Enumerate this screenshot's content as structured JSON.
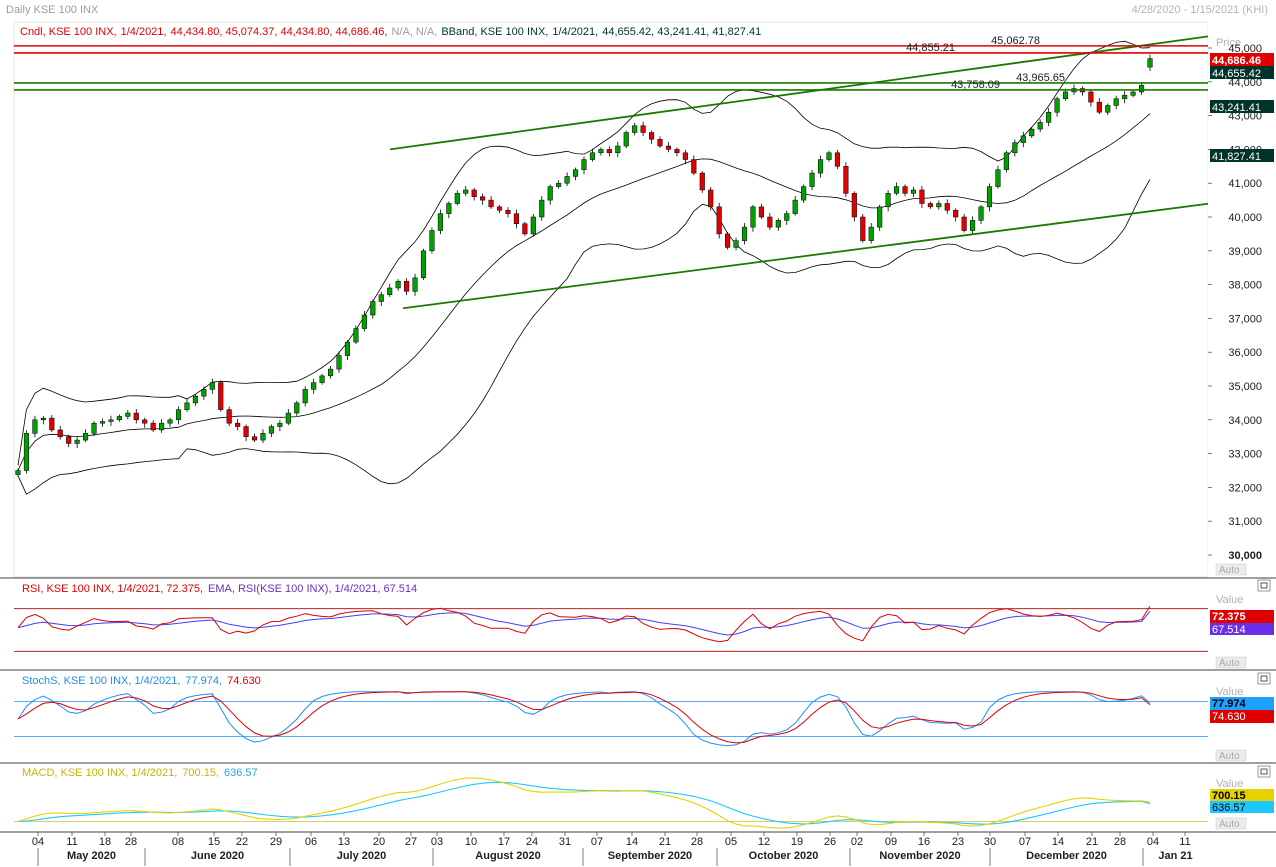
{
  "window": {
    "title": "Daily KSE 100 INX",
    "date_range": "4/28/2020 - 1/15/2021 (KHI)"
  },
  "main": {
    "legend_cndl": {
      "name": "Cndl, KSE 100 INX,",
      "date": "1/4/2021,",
      "o": "44,434.80,",
      "h": "45,074.37,",
      "l": "44,434.80,",
      "c": "44,686.46,",
      "na": "N/A, N/A,"
    },
    "legend_bband": {
      "name": "BBand, KSE 100 INX,",
      "date": "1/4/2021,",
      "values": "44,655.42,  43,241.41,  41,827.41"
    },
    "axis_title": "Price",
    "y_ticks": [
      {
        "v": 45000,
        "label": "45,000"
      },
      {
        "v": 44000,
        "label": "44,000"
      },
      {
        "v": 43000,
        "label": "43,000"
      },
      {
        "v": 42000,
        "label": "42,000"
      },
      {
        "v": 41000,
        "label": "41,000"
      },
      {
        "v": 40000,
        "label": "40,000"
      },
      {
        "v": 39000,
        "label": "39,000"
      },
      {
        "v": 38000,
        "label": "38,000"
      },
      {
        "v": 37000,
        "label": "37,000"
      },
      {
        "v": 36000,
        "label": "36,000"
      },
      {
        "v": 35000,
        "label": "35,000"
      },
      {
        "v": 34000,
        "label": "34,000"
      },
      {
        "v": 33000,
        "label": "33,000"
      },
      {
        "v": 32000,
        "label": "32,000"
      },
      {
        "v": 31000,
        "label": "31,000"
      },
      {
        "v": 30000,
        "label": "30,000"
      }
    ],
    "level_labels": [
      {
        "v": 45062.78,
        "label": "45,062.78",
        "color": "#e00000"
      },
      {
        "v": 44855.21,
        "label": "44,855.21",
        "color": "#e00000"
      },
      {
        "v": 43965.65,
        "label": "43,965.65",
        "color": "#1a7a00"
      },
      {
        "v": 43758.09,
        "label": "43,758.09",
        "color": "#1a7a00"
      }
    ],
    "last_markers": [
      {
        "v": 44686.46,
        "label": "44,686.46",
        "bg": "#e00000",
        "fg": "#ffffff"
      },
      {
        "v": 44655.42,
        "label": "44,655.42",
        "bg": "#00332a",
        "fg": "#ffffff"
      },
      {
        "v": 43241.41,
        "label": "43,241.41",
        "bg": "#00332a",
        "fg": "#ffffff"
      },
      {
        "v": 41827.41,
        "label": "41,827.41",
        "bg": "#00332a",
        "fg": "#ffffff"
      }
    ],
    "auto_label": "Auto"
  },
  "rsi_panel": {
    "legend_a": "RSI, KSE 100 INX,  1/4/2021,  72.375,",
    "legend_b": "EMA, RSI(KSE 100 INX),  1/4/2021,  67.514",
    "value_title": "Value",
    "marker_a": "72.375",
    "marker_b": "67.514",
    "auto_label": "Auto"
  },
  "stoch_panel": {
    "legend_a": "StochS, KSE 100 INX,  1/4/2021,",
    "legend_b": "77.974,",
    "legend_c": "74.630",
    "value_title": "Value",
    "marker_a": "77.974",
    "marker_b": "74.630",
    "auto_label": "Auto"
  },
  "macd_panel": {
    "legend_a": "MACD, KSE 100 INX,  1/4/2021,",
    "legend_b": "700.15,",
    "legend_c": "636.57",
    "value_title": "Value",
    "marker_a": "700.15",
    "marker_b": "636.57",
    "auto_label": "Auto"
  },
  "time_axis": {
    "days": [
      "04",
      "11",
      "18",
      "28",
      "08",
      "15",
      "22",
      "29",
      "06",
      "13",
      "20",
      "27",
      "03",
      "10",
      "17",
      "24",
      "31",
      "07",
      "14",
      "21",
      "28",
      "05",
      "12",
      "19",
      "26",
      "02",
      "09",
      "16",
      "23",
      "30",
      "07",
      "14",
      "21",
      "28",
      "04",
      "11"
    ],
    "months": [
      "May 2020",
      "June 2020",
      "July 2020",
      "August 2020",
      "September 2020",
      "October 2020",
      "November 2020",
      "December 2020",
      "Jan 21"
    ]
  },
  "colors": {
    "up": "#00a000",
    "down": "#e00000",
    "bband": "#000000",
    "trend": "#1a7a00",
    "levels": "#e00000",
    "rsi": "#e00000",
    "ema": "#4040ff",
    "stoch_k": "#1e90ff",
    "stoch_d": "#e00000",
    "macd": "#e6d200",
    "signal": "#1ec8ff"
  },
  "chart_data": {
    "type": "candlestick",
    "title": "Daily KSE 100 INX",
    "ylabel": "Price",
    "ylim": [
      29500,
      45600
    ],
    "date_start": "2020-04-28",
    "date_end": "2021-01-04",
    "close_approx": [
      32500,
      33600,
      34000,
      34050,
      33700,
      33500,
      33300,
      33400,
      33600,
      33900,
      33950,
      34000,
      34100,
      34200,
      34000,
      33900,
      33700,
      33900,
      34000,
      34300,
      34500,
      34700,
      34900,
      35100,
      34300,
      33900,
      33800,
      33500,
      33400,
      33600,
      33800,
      33900,
      34200,
      34500,
      34900,
      35100,
      35300,
      35500,
      35900,
      36300,
      36700,
      37100,
      37500,
      37700,
      37900,
      38100,
      37800,
      38200,
      39000,
      39600,
      40100,
      40400,
      40700,
      40800,
      40600,
      40500,
      40300,
      40200,
      40100,
      39800,
      39500,
      40000,
      40500,
      40900,
      41000,
      41200,
      41400,
      41700,
      41900,
      42000,
      41900,
      42100,
      42500,
      42700,
      42500,
      42300,
      42100,
      42000,
      41900,
      41700,
      41300,
      40800,
      40300,
      39500,
      39100,
      39300,
      39700,
      40300,
      40000,
      39700,
      39900,
      40100,
      40500,
      40900,
      41300,
      41700,
      41900,
      41500,
      40700,
      40000,
      39300,
      39700,
      40300,
      40700,
      40900,
      40700,
      40800,
      40400,
      40300,
      40400,
      40200,
      40000,
      39600,
      39900,
      40300,
      40900,
      41400,
      41900,
      42200,
      42400,
      42600,
      42800,
      43100,
      43500,
      43700,
      43800,
      43700,
      43400,
      43100,
      43300,
      43500,
      43600,
      43700,
      43900,
      44687
    ],
    "bband": {
      "upper_last": 44655.42,
      "middle_last": 43241.41,
      "lower_last": 41827.41
    },
    "levels": [
      45062.78,
      44855.21,
      43965.65,
      43758.09
    ],
    "trendlines": [
      {
        "from": [
          "2020-07-10",
          42000
        ],
        "to": [
          "2021-01-15",
          45350
        ]
      },
      {
        "from": [
          "2020-07-22",
          37300
        ],
        "to": [
          "2021-01-15",
          40400
        ]
      }
    ],
    "rsi": {
      "last": 72.375,
      "ema_last": 67.514,
      "levels": [
        70,
        30
      ]
    },
    "stoch": {
      "k_last": 77.974,
      "d_last": 74.63,
      "levels": [
        80,
        20
      ]
    },
    "macd": {
      "macd_last": 700.15,
      "signal_last": 636.57
    }
  }
}
